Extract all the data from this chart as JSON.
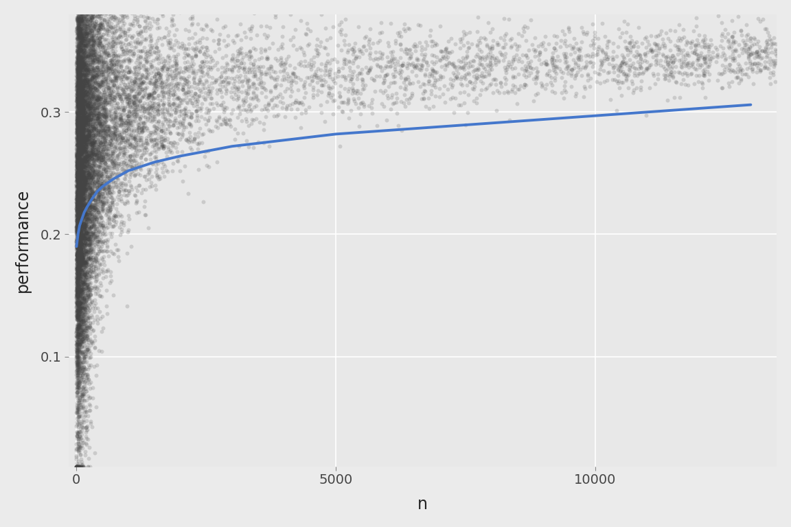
{
  "title": "",
  "xlabel": "n",
  "ylabel": "performance",
  "xlim": [
    -150,
    13500
  ],
  "ylim": [
    0.01,
    0.38
  ],
  "yticks": [
    0.1,
    0.2,
    0.3
  ],
  "xticks": [
    0,
    5000,
    10000
  ],
  "background_color": "#EBEBEB",
  "panel_color": "#E8E8E8",
  "grid_color": "#FFFFFF",
  "point_color_dark": "#444444",
  "point_color_light": "#888888",
  "point_alpha": 0.18,
  "point_size": 18,
  "line_color": "#4477CC",
  "line_width": 2.8,
  "n_points": 15000,
  "seed": 42,
  "smooth_curve_x": [
    1,
    30,
    60,
    100,
    150,
    200,
    300,
    400,
    500,
    700,
    1000,
    1500,
    2000,
    3000,
    4000,
    5000,
    6000,
    7000,
    8000,
    9000,
    10000,
    11000,
    12000,
    13000
  ],
  "smooth_curve_y": [
    0.19,
    0.2,
    0.207,
    0.212,
    0.218,
    0.222,
    0.229,
    0.235,
    0.239,
    0.245,
    0.252,
    0.259,
    0.264,
    0.272,
    0.277,
    0.282,
    0.285,
    0.288,
    0.291,
    0.294,
    0.297,
    0.3,
    0.303,
    0.306
  ]
}
